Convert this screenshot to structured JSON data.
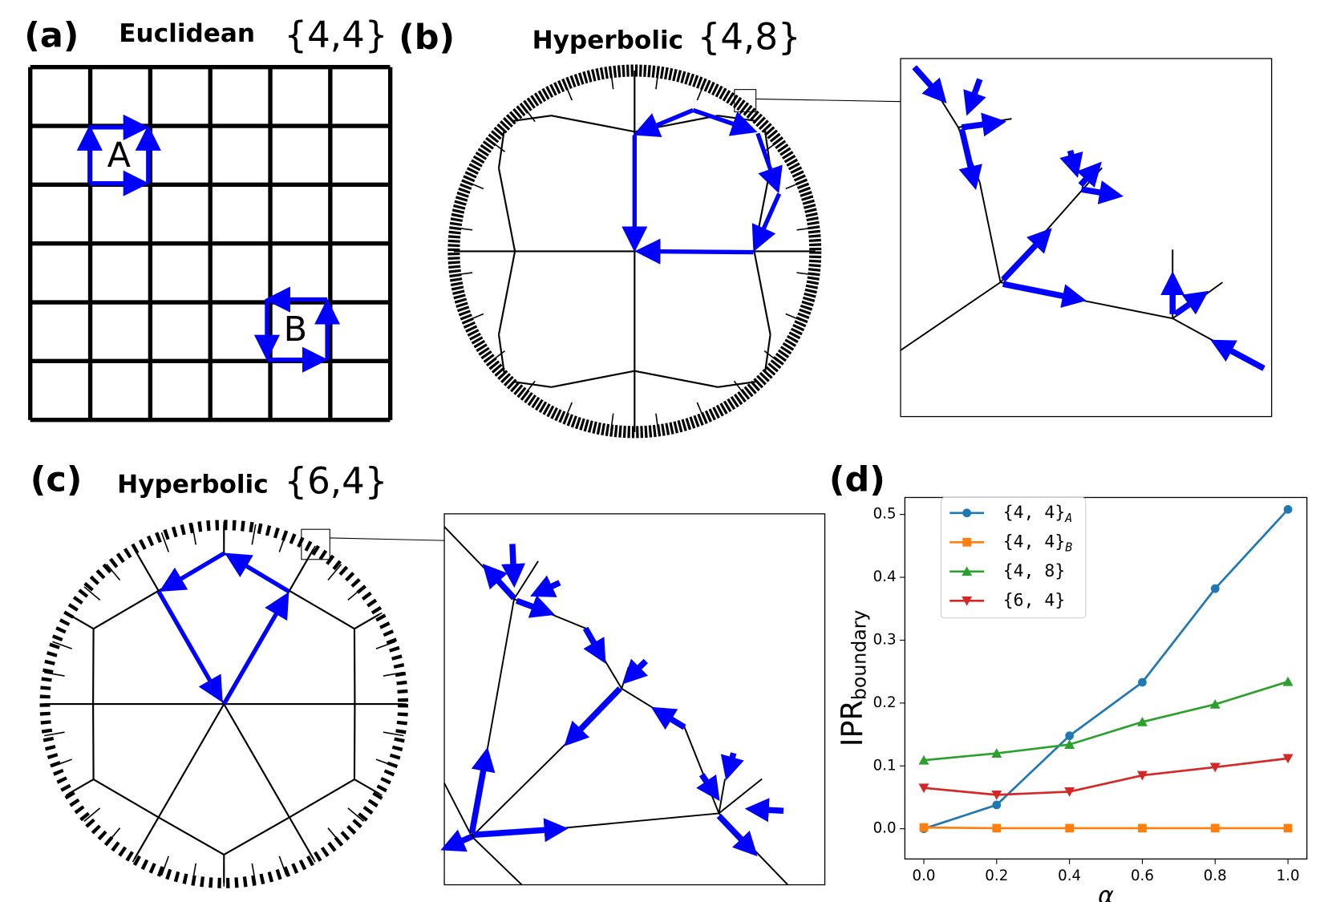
{
  "panels": [
    {
      "label": "(a)",
      "title": "Euclidean",
      "symbol": "{4,4}",
      "loops": [
        "A",
        "B"
      ]
    },
    {
      "label": "(b)",
      "title": "Hyperbolic",
      "symbol": "{4,8}"
    },
    {
      "label": "(c)",
      "title": "Hyperbolic",
      "symbol": "{6,4}"
    },
    {
      "label": "(d)"
    }
  ],
  "chart_data": {
    "type": "line",
    "xlabel": "α",
    "ylabel": "IPR",
    "ylabel_subscript": "boundary",
    "x": [
      0.0,
      0.2,
      0.4,
      0.6,
      0.8,
      1.0
    ],
    "series": [
      {
        "name": "{4, 4}",
        "subscript": "A",
        "color": "#1f77b4",
        "marker": "circle",
        "values": [
          0.0,
          0.038,
          0.148,
          0.233,
          0.382,
          0.508
        ]
      },
      {
        "name": "{4, 4}",
        "subscript": "B",
        "color": "#ff7f0e",
        "marker": "square",
        "values": [
          0.002,
          0.001,
          0.001,
          0.001,
          0.001,
          0.001
        ]
      },
      {
        "name": "{4, 8}",
        "color": "#2ca02c",
        "marker": "triangle-up",
        "values": [
          0.109,
          0.12,
          0.134,
          0.17,
          0.198,
          0.234
        ]
      },
      {
        "name": "{6, 4}",
        "color": "#d62728",
        "marker": "triangle-down",
        "values": [
          0.065,
          0.054,
          0.059,
          0.085,
          0.098,
          0.112
        ]
      }
    ],
    "xlim": [
      -0.052,
      1.052
    ],
    "xticks": [
      {
        "value": 0,
        "label": "0.0"
      },
      0.2,
      0.4,
      0.6,
      0.8,
      {
        "value": 1,
        "label": "1.0"
      }
    ],
    "ylim": [
      -0.048,
      0.527
    ],
    "yticks": [
      {
        "value": 0,
        "label": "0.0"
      },
      0.1,
      0.2,
      0.3,
      0.4,
      0.5
    ],
    "legend": "upper-left"
  }
}
